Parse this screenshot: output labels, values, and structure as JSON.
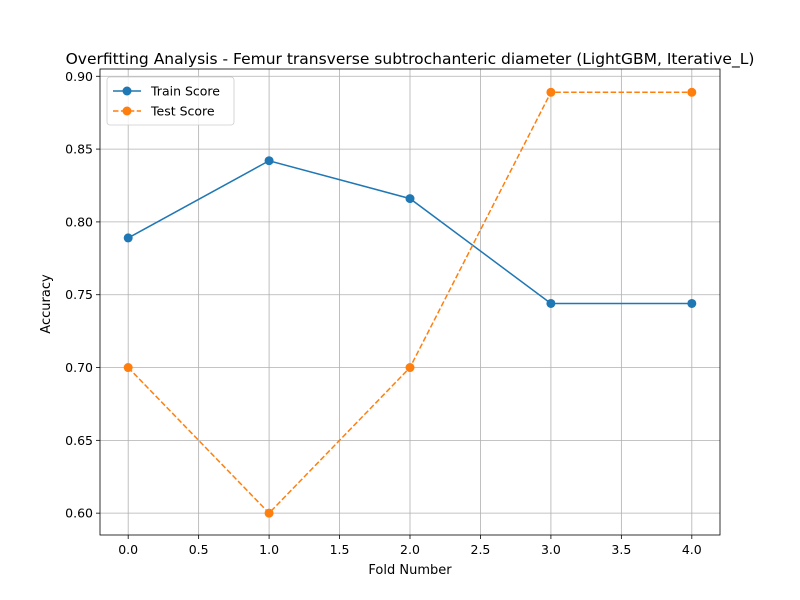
{
  "chart_data": {
    "type": "line",
    "title": "Overfitting Analysis - Femur transverse subtrochanteric diameter (LightGBM, Iterative_L)",
    "xlabel": "Fold Number",
    "ylabel": "Accuracy",
    "x": [
      0,
      1,
      2,
      3,
      4
    ],
    "xlim": [
      -0.2,
      4.2
    ],
    "ylim": [
      0.585,
      0.905
    ],
    "xticks": [
      "0.0",
      "0.5",
      "1.0",
      "1.5",
      "2.0",
      "2.5",
      "3.0",
      "3.5",
      "4.0"
    ],
    "yticks": [
      "0.60",
      "0.65",
      "0.70",
      "0.75",
      "0.80",
      "0.85",
      "0.90"
    ],
    "grid": true,
    "legend_position": "upper-left",
    "series": [
      {
        "name": "Train Score",
        "values": [
          0.789,
          0.842,
          0.816,
          0.744,
          0.744
        ],
        "color": "#1f77b4",
        "linestyle": "solid",
        "marker": "circle"
      },
      {
        "name": "Test Score",
        "values": [
          0.7,
          0.6,
          0.7,
          0.889,
          0.889
        ],
        "color": "#ff7f0e",
        "linestyle": "dashed",
        "marker": "circle"
      }
    ]
  }
}
